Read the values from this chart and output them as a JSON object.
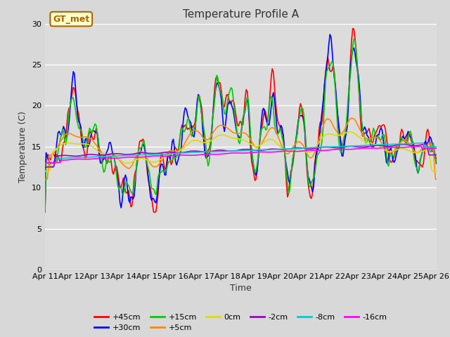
{
  "title": "Temperature Profile A",
  "xlabel": "Time",
  "ylabel": "Temperature (C)",
  "ylim": [
    0,
    30
  ],
  "xlim": [
    0,
    360
  ],
  "xtick_labels": [
    "Apr 11",
    "Apr 12",
    "Apr 13",
    "Apr 14",
    "Apr 15",
    "Apr 16",
    "Apr 17",
    "Apr 18",
    "Apr 19",
    "Apr 20",
    "Apr 21",
    "Apr 22",
    "Apr 23",
    "Apr 24",
    "Apr 25",
    "Apr 26"
  ],
  "xtick_positions": [
    0,
    24,
    48,
    72,
    96,
    120,
    144,
    168,
    192,
    216,
    240,
    264,
    288,
    312,
    336,
    360
  ],
  "series_order": [
    "+45cm",
    "+30cm",
    "+15cm",
    "+5cm",
    "0cm",
    "-2cm",
    "-8cm",
    "-16cm"
  ],
  "series": {
    "+45cm": {
      "color": "#ff0000",
      "lw": 1.2
    },
    "+30cm": {
      "color": "#0000ff",
      "lw": 1.2
    },
    "+15cm": {
      "color": "#00cc00",
      "lw": 1.2
    },
    "+5cm": {
      "color": "#ff8800",
      "lw": 1.2
    },
    "0cm": {
      "color": "#dddd00",
      "lw": 1.2
    },
    "-2cm": {
      "color": "#9900cc",
      "lw": 1.2
    },
    "-8cm": {
      "color": "#00cccc",
      "lw": 1.2
    },
    "-16cm": {
      "color": "#ff00ff",
      "lw": 1.2
    }
  },
  "legend_label": "GT_met",
  "legend_label_color": "#aa6600",
  "fig_facecolor": "#d8d8d8",
  "plot_facecolor": "#dcdcdc",
  "title_fontsize": 11,
  "axis_label_fontsize": 9,
  "tick_fontsize": 8,
  "legend_row1": [
    "+45cm",
    "+30cm",
    "+15cm",
    "+5cm",
    "0cm",
    "-2cm"
  ],
  "legend_row2": [
    "-8cm",
    "-16cm"
  ]
}
